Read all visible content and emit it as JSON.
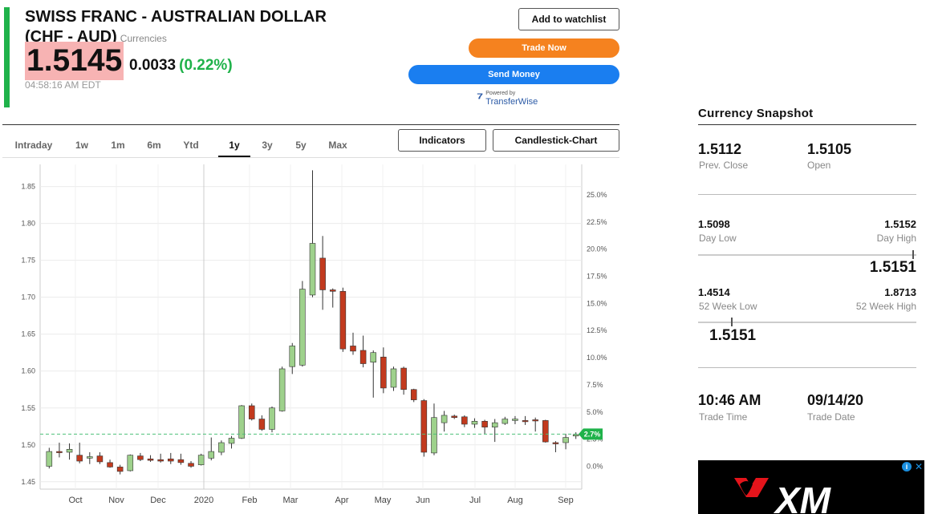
{
  "header": {
    "title_line1": "SWISS FRANC - AUSTRALIAN DOLLAR",
    "title_line2": "(CHF - AUD)",
    "category": "Currencies",
    "price": "1.5145",
    "change": "0.0033",
    "change_pct": "(0.22%)",
    "timestamp": "04:58:16 AM EDT",
    "colors": {
      "up": "#1fb24a",
      "price_highlight": "#f7b3b3"
    }
  },
  "actions": {
    "watchlist": "Add to watchlist",
    "trade_now": "Trade Now",
    "send_money": "Send Money",
    "powered_by": "Powered by",
    "powered_brand": "TransferWise",
    "colors": {
      "trade_now": "#f5821f",
      "send_money": "#1a7ef0"
    }
  },
  "toolbar": {
    "tabs": [
      "Intraday",
      "1w",
      "1m",
      "6m",
      "Ytd",
      "1y",
      "3y",
      "5y",
      "Max"
    ],
    "active_tab": "1y",
    "indicators": "Indicators",
    "chart_type": "Candlestick-Chart"
  },
  "chart_data": {
    "type": "candlestick",
    "left_axis": {
      "ticks": [
        "1.85",
        "1.80",
        "1.75",
        "1.70",
        "1.65",
        "1.60",
        "1.55",
        "1.50",
        "1.45"
      ],
      "range": [
        1.44,
        1.88
      ]
    },
    "right_axis": {
      "ticks": [
        "25.0%",
        "22.5%",
        "20.0%",
        "17.5%",
        "15.0%",
        "12.5%",
        "10.0%",
        "7.5%",
        "5.0%",
        "2.5%",
        "0.0%"
      ]
    },
    "x_labels": [
      "Oct",
      "Nov",
      "Dec",
      "2020",
      "Feb",
      "Mar",
      "Apr",
      "May",
      "Jun",
      "Jul",
      "Aug",
      "Sep"
    ],
    "current_badge": "2.7%",
    "reference_level": 1.5145,
    "colors": {
      "up": "#9ed18c",
      "down": "#c23a1e",
      "badge": "#1fb24a"
    },
    "candles": [
      {
        "o": 1.471,
        "h": 1.496,
        "l": 1.468,
        "c": 1.491
      },
      {
        "o": 1.491,
        "h": 1.503,
        "l": 1.483,
        "c": 1.49
      },
      {
        "o": 1.49,
        "h": 1.502,
        "l": 1.48,
        "c": 1.494
      },
      {
        "o": 1.486,
        "h": 1.503,
        "l": 1.475,
        "c": 1.478
      },
      {
        "o": 1.482,
        "h": 1.49,
        "l": 1.474,
        "c": 1.484
      },
      {
        "o": 1.485,
        "h": 1.49,
        "l": 1.474,
        "c": 1.477
      },
      {
        "o": 1.476,
        "h": 1.48,
        "l": 1.469,
        "c": 1.47
      },
      {
        "o": 1.47,
        "h": 1.473,
        "l": 1.46,
        "c": 1.464
      },
      {
        "o": 1.465,
        "h": 1.487,
        "l": 1.464,
        "c": 1.486
      },
      {
        "o": 1.485,
        "h": 1.489,
        "l": 1.478,
        "c": 1.48
      },
      {
        "o": 1.481,
        "h": 1.486,
        "l": 1.477,
        "c": 1.479
      },
      {
        "o": 1.48,
        "h": 1.488,
        "l": 1.476,
        "c": 1.478
      },
      {
        "o": 1.481,
        "h": 1.489,
        "l": 1.474,
        "c": 1.478
      },
      {
        "o": 1.48,
        "h": 1.488,
        "l": 1.473,
        "c": 1.476
      },
      {
        "o": 1.475,
        "h": 1.478,
        "l": 1.469,
        "c": 1.471
      },
      {
        "o": 1.473,
        "h": 1.488,
        "l": 1.472,
        "c": 1.486
      },
      {
        "o": 1.482,
        "h": 1.51,
        "l": 1.479,
        "c": 1.491
      },
      {
        "o": 1.49,
        "h": 1.506,
        "l": 1.486,
        "c": 1.503
      },
      {
        "o": 1.502,
        "h": 1.512,
        "l": 1.495,
        "c": 1.509
      },
      {
        "o": 1.509,
        "h": 1.554,
        "l": 1.508,
        "c": 1.553
      },
      {
        "o": 1.553,
        "h": 1.556,
        "l": 1.533,
        "c": 1.535
      },
      {
        "o": 1.535,
        "h": 1.54,
        "l": 1.519,
        "c": 1.521
      },
      {
        "o": 1.521,
        "h": 1.552,
        "l": 1.517,
        "c": 1.55
      },
      {
        "o": 1.546,
        "h": 1.606,
        "l": 1.545,
        "c": 1.603
      },
      {
        "o": 1.606,
        "h": 1.638,
        "l": 1.596,
        "c": 1.634
      },
      {
        "o": 1.608,
        "h": 1.722,
        "l": 1.606,
        "c": 1.711
      },
      {
        "o": 1.703,
        "h": 1.872,
        "l": 1.7,
        "c": 1.773
      },
      {
        "o": 1.753,
        "h": 1.783,
        "l": 1.683,
        "c": 1.71
      },
      {
        "o": 1.71,
        "h": 1.712,
        "l": 1.686,
        "c": 1.708
      },
      {
        "o": 1.708,
        "h": 1.713,
        "l": 1.626,
        "c": 1.63
      },
      {
        "o": 1.634,
        "h": 1.652,
        "l": 1.622,
        "c": 1.627
      },
      {
        "o": 1.628,
        "h": 1.648,
        "l": 1.605,
        "c": 1.61
      },
      {
        "o": 1.612,
        "h": 1.628,
        "l": 1.564,
        "c": 1.625
      },
      {
        "o": 1.619,
        "h": 1.632,
        "l": 1.57,
        "c": 1.577
      },
      {
        "o": 1.578,
        "h": 1.606,
        "l": 1.573,
        "c": 1.603
      },
      {
        "o": 1.604,
        "h": 1.606,
        "l": 1.568,
        "c": 1.575
      },
      {
        "o": 1.575,
        "h": 1.576,
        "l": 1.558,
        "c": 1.561
      },
      {
        "o": 1.56,
        "h": 1.562,
        "l": 1.484,
        "c": 1.49
      },
      {
        "o": 1.489,
        "h": 1.556,
        "l": 1.486,
        "c": 1.537
      },
      {
        "o": 1.53,
        "h": 1.546,
        "l": 1.518,
        "c": 1.54
      },
      {
        "o": 1.539,
        "h": 1.541,
        "l": 1.535,
        "c": 1.537
      },
      {
        "o": 1.538,
        "h": 1.54,
        "l": 1.524,
        "c": 1.528
      },
      {
        "o": 1.528,
        "h": 1.536,
        "l": 1.523,
        "c": 1.532
      },
      {
        "o": 1.532,
        "h": 1.534,
        "l": 1.515,
        "c": 1.524
      },
      {
        "o": 1.524,
        "h": 1.535,
        "l": 1.504,
        "c": 1.53
      },
      {
        "o": 1.529,
        "h": 1.538,
        "l": 1.527,
        "c": 1.535
      },
      {
        "o": 1.533,
        "h": 1.539,
        "l": 1.528,
        "c": 1.535
      },
      {
        "o": 1.533,
        "h": 1.539,
        "l": 1.527,
        "c": 1.532
      },
      {
        "o": 1.534,
        "h": 1.537,
        "l": 1.518,
        "c": 1.533
      },
      {
        "o": 1.533,
        "h": 1.534,
        "l": 1.503,
        "c": 1.504
      },
      {
        "o": 1.503,
        "h": 1.505,
        "l": 1.49,
        "c": 1.502
      },
      {
        "o": 1.503,
        "h": 1.515,
        "l": 1.494,
        "c": 1.51
      },
      {
        "o": 1.512,
        "h": 1.517,
        "l": 1.508,
        "c": 1.514
      }
    ]
  },
  "snapshot": {
    "title": "Currency Snapshot",
    "prev_close_value": "1.5112",
    "prev_close_label": "Prev. Close",
    "open_value": "1.5105",
    "open_label": "Open",
    "day_low_value": "1.5098",
    "day_low_label": "Day Low",
    "day_high_value": "1.5152",
    "day_high_label": "Day High",
    "day_range_current": "1.5151",
    "day_range_fraction": 0.98,
    "week52_low_value": "1.4514",
    "week52_low_label": "52 Week Low",
    "week52_high_value": "1.8713",
    "week52_high_label": "52 Week High",
    "week52_range_current": "1.5151",
    "week52_range_fraction": 0.15,
    "trade_time_value": "10:46 AM",
    "trade_time_label": "Trade Time",
    "trade_date_value": "09/14/20",
    "trade_date_label": "Trade Date"
  },
  "ad": {
    "brand": "XM",
    "info_icon": "info-icon",
    "close_icon": "close-icon"
  }
}
